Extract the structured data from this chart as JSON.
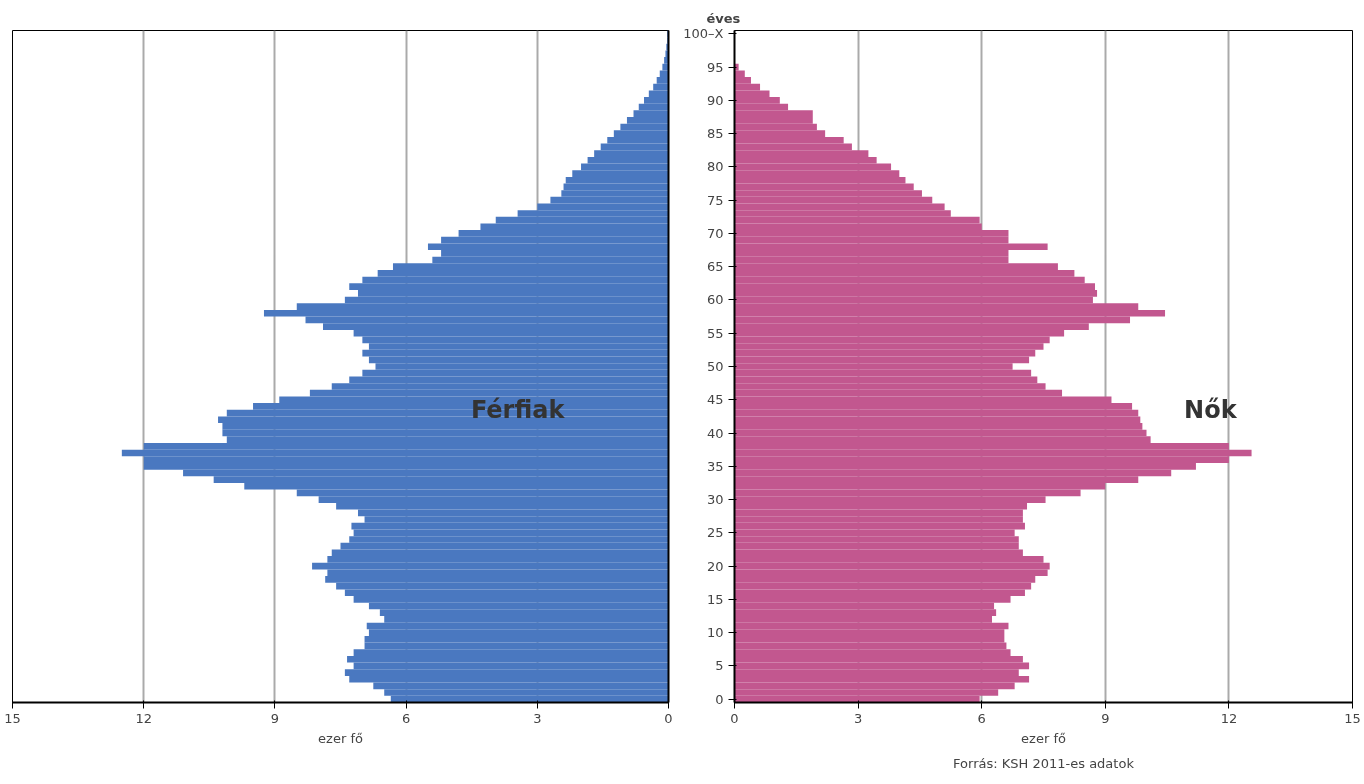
{
  "chart_data": [
    {
      "type": "bar",
      "orientation": "horizontal",
      "xlabel": "ezer fő",
      "tick_labels": "x",
      "grid": "x",
      "categories": [
        null,
        null,
        null,
        null,
        null,
        null,
        null,
        null,
        null,
        null,
        null,
        null,
        null,
        null,
        null,
        null,
        null,
        null,
        null,
        null,
        null,
        null,
        null,
        null,
        null,
        null,
        null,
        null,
        null,
        null,
        null,
        null,
        null,
        null,
        null,
        null,
        null,
        null,
        null,
        null,
        null,
        null,
        null,
        null,
        null,
        null,
        null,
        null,
        null,
        null,
        null,
        null,
        null,
        null,
        null,
        null,
        null,
        null,
        null,
        null,
        null,
        null,
        null,
        null,
        null,
        null,
        null,
        null,
        null,
        null,
        null,
        null,
        null,
        null,
        null,
        null,
        null,
        null,
        null,
        null,
        null,
        null,
        null,
        null,
        null,
        null,
        null,
        null,
        null,
        null,
        null,
        null,
        null,
        null,
        null,
        null,
        null,
        null,
        null,
        null,
        null
      ],
      "xlim": [
        15,
        0
      ],
      "xticks": [
        15,
        12,
        9,
        6,
        3,
        0
      ],
      "series": [
        {
          "name": "Férfiak",
          "color": "#4a78c0",
          "values": [
            0.03,
            0.03,
            0.05,
            0.07,
            0.1,
            0.14,
            0.2,
            0.27,
            0.35,
            0.45,
            0.56,
            0.68,
            0.8,
            0.95,
            1.1,
            1.25,
            1.4,
            1.55,
            1.7,
            1.85,
            2.0,
            2.2,
            2.35,
            2.4,
            2.45,
            2.7,
            3.0,
            3.45,
            3.95,
            4.3,
            4.8,
            5.2,
            5.5,
            5.2,
            5.4,
            6.3,
            6.65,
            7.0,
            7.3,
            7.1,
            7.4,
            8.5,
            9.25,
            8.3,
            7.9,
            7.2,
            7.0,
            6.85,
            7.0,
            6.85,
            6.7,
            7.0,
            7.3,
            7.7,
            8.2,
            8.9,
            9.5,
            10.1,
            10.3,
            10.2,
            10.2,
            10.1,
            12.0,
            12.5,
            12.0,
            12.0,
            11.1,
            10.4,
            9.7,
            8.5,
            8.0,
            7.6,
            7.1,
            6.95,
            7.25,
            7.2,
            7.3,
            7.5,
            7.7,
            7.8,
            8.15,
            7.8,
            7.85,
            7.6,
            7.4,
            7.2,
            6.85,
            6.6,
            6.5,
            6.9,
            6.85,
            6.95,
            6.95,
            7.2,
            7.35,
            7.2,
            7.4,
            7.3,
            6.75,
            6.5,
            6.35
          ]
        }
      ]
    },
    {
      "type": "bar",
      "orientation": "horizontal",
      "xlabel": "ezer fő",
      "ylabel": "éves",
      "grid": "x",
      "annotations": [
        "Forrás: KSH 2011-es adatok"
      ],
      "categories": [
        "100–X",
        null,
        null,
        null,
        null,
        "95",
        null,
        null,
        null,
        null,
        "90",
        null,
        null,
        null,
        null,
        "85",
        null,
        null,
        null,
        null,
        "80",
        null,
        null,
        null,
        null,
        "75",
        null,
        null,
        null,
        null,
        "70",
        null,
        null,
        null,
        null,
        "65",
        null,
        null,
        null,
        null,
        "60",
        null,
        null,
        null,
        null,
        "55",
        null,
        null,
        null,
        null,
        "50",
        null,
        null,
        null,
        null,
        "45",
        null,
        null,
        null,
        null,
        "40",
        null,
        null,
        null,
        null,
        "35",
        null,
        null,
        null,
        null,
        "30",
        null,
        null,
        null,
        null,
        "25",
        null,
        null,
        null,
        null,
        "20",
        null,
        null,
        null,
        null,
        "15",
        null,
        null,
        null,
        null,
        "10",
        null,
        null,
        null,
        null,
        "5",
        null,
        null,
        null,
        null,
        "0"
      ],
      "xlim": [
        0,
        15
      ],
      "xticks": [
        0,
        3,
        6,
        9,
        12,
        15
      ],
      "series": [
        {
          "name": "Nők",
          "color": "#c2578f",
          "values": [
            null,
            null,
            null,
            null,
            null,
            0.1,
            0.25,
            0.4,
            0.62,
            0.85,
            1.1,
            1.3,
            1.9,
            1.9,
            2.0,
            2.2,
            2.65,
            2.85,
            3.25,
            3.45,
            3.8,
            4.0,
            4.15,
            4.35,
            4.55,
            4.8,
            5.1,
            5.25,
            5.95,
            6.0,
            6.65,
            6.65,
            7.6,
            6.65,
            6.65,
            7.85,
            8.25,
            8.5,
            8.75,
            8.8,
            8.7,
            9.8,
            10.45,
            9.6,
            8.6,
            8.0,
            7.65,
            7.5,
            7.3,
            7.15,
            6.75,
            7.2,
            7.35,
            7.55,
            7.95,
            9.15,
            9.65,
            9.8,
            9.85,
            9.9,
            10.0,
            10.1,
            12.0,
            12.55,
            12.0,
            11.2,
            10.6,
            9.8,
            9.0,
            8.4,
            7.55,
            7.1,
            7.0,
            7.0,
            7.05,
            6.8,
            6.9,
            6.9,
            7.0,
            7.5,
            7.65,
            7.6,
            7.3,
            7.2,
            7.05,
            6.7,
            6.3,
            6.35,
            6.25,
            6.65,
            6.55,
            6.55,
            6.6,
            6.7,
            7.0,
            7.15,
            6.9,
            7.15,
            6.8,
            6.4,
            5.95
          ]
        }
      ]
    }
  ]
}
